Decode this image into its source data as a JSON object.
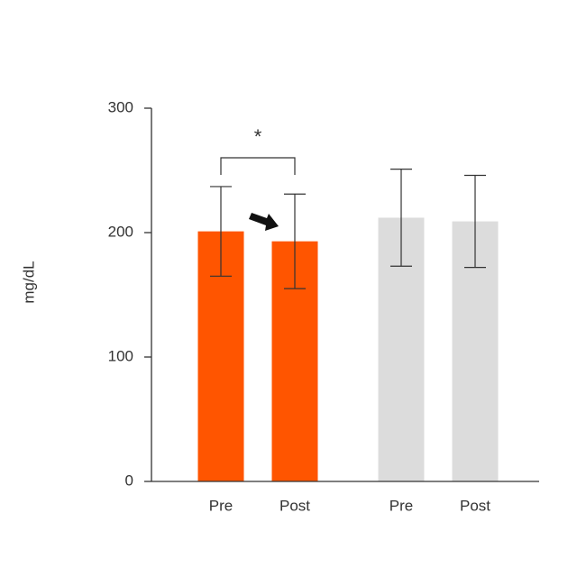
{
  "chart_data": {
    "type": "bar",
    "y_label": "mg/dL",
    "categories": [
      "Pre",
      "Post",
      "Pre",
      "Post"
    ],
    "values": [
      201,
      193,
      212,
      209
    ],
    "errors": [
      36,
      38,
      39,
      37
    ],
    "colors": [
      "#ff5500",
      "#ff5500",
      "#dcdcdc",
      "#dcdcdc"
    ],
    "ylim": [
      0,
      300
    ],
    "yticks": [
      0,
      100,
      200,
      300
    ],
    "annotation": "*"
  }
}
